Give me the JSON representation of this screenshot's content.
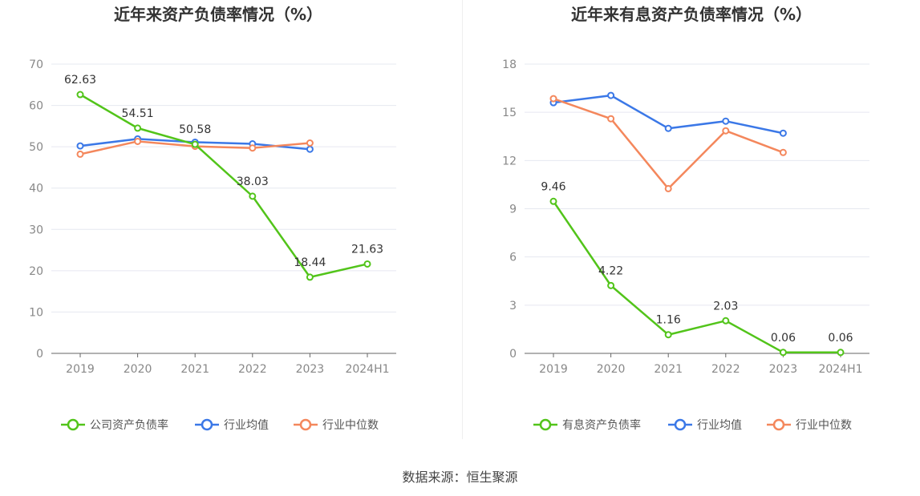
{
  "source": {
    "label": "数据来源：恒生聚源"
  },
  "chart_data": [
    {
      "type": "line",
      "title": "近年来资产负债率情况（%）",
      "categories": [
        "2019",
        "2020",
        "2021",
        "2022",
        "2023",
        "2024H1"
      ],
      "ylim": [
        0,
        70
      ],
      "yticks": [
        0,
        10,
        20,
        30,
        40,
        50,
        60,
        70
      ],
      "grid": true,
      "legend_position": "bottom",
      "series": [
        {
          "name": "公司资产负债率",
          "color": "#52c41a",
          "values": [
            62.63,
            54.51,
            50.58,
            38.03,
            18.44,
            21.63
          ],
          "labels": [
            "62.63",
            "54.51",
            "50.58",
            "38.03",
            "18.44",
            "21.63"
          ]
        },
        {
          "name": "行业均值",
          "color": "#3b78e7",
          "values": [
            50.2,
            51.9,
            51.1,
            50.7,
            49.4,
            null
          ]
        },
        {
          "name": "行业中位数",
          "color": "#f4875c",
          "values": [
            48.2,
            51.3,
            50.1,
            49.7,
            50.9,
            null
          ]
        }
      ]
    },
    {
      "type": "line",
      "title": "近年来有息资产负债率情况（%）",
      "categories": [
        "2019",
        "2020",
        "2021",
        "2022",
        "2023",
        "2024H1"
      ],
      "ylim": [
        0,
        18
      ],
      "yticks": [
        0,
        3,
        6,
        9,
        12,
        15,
        18
      ],
      "grid": true,
      "legend_position": "bottom",
      "series": [
        {
          "name": "有息资产负债率",
          "color": "#52c41a",
          "values": [
            9.46,
            4.22,
            1.16,
            2.03,
            0.06,
            0.06
          ],
          "labels": [
            "9.46",
            "4.22",
            "1.16",
            "2.03",
            "0.06",
            "0.06"
          ]
        },
        {
          "name": "行业均值",
          "color": "#3b78e7",
          "values": [
            15.6,
            16.05,
            14.0,
            14.45,
            13.7,
            null
          ]
        },
        {
          "name": "行业中位数",
          "color": "#f4875c",
          "values": [
            15.85,
            14.6,
            10.25,
            13.85,
            12.5,
            null
          ]
        }
      ]
    }
  ]
}
